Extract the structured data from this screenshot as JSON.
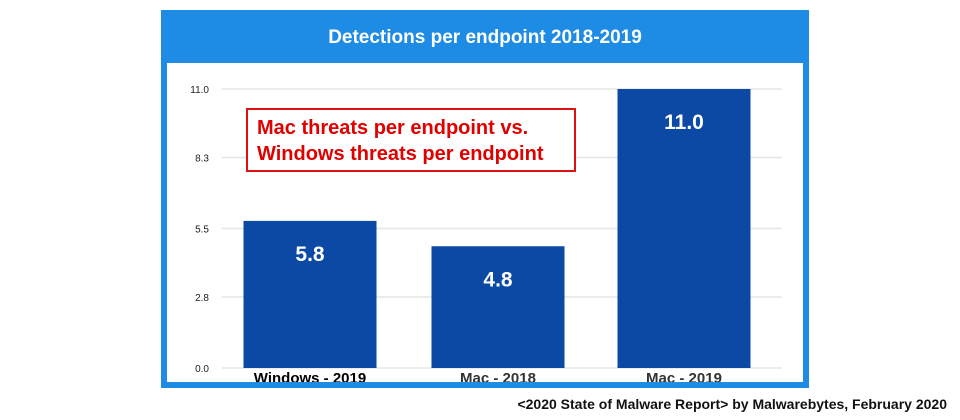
{
  "title": "Detections per endpoint 2018-2019",
  "annotation": "Mac threats per endpoint vs.\nWindows threats per endpoint",
  "source": "<2020 State of Malware Report> by Malwarebytes, February 2020",
  "colors": {
    "frame": "#1e8ce5",
    "bar": "#0b49a5",
    "annotation": "#e00000",
    "gridline": "#e6e6e6"
  },
  "chart_data": {
    "type": "bar",
    "title": "Detections per endpoint 2018-2019",
    "categories": [
      "Windows - 2019",
      "Mac - 2018",
      "Mac - 2019"
    ],
    "values": [
      5.8,
      4.8,
      11.0
    ],
    "value_labels": [
      "5.8",
      "4.8",
      "11.0"
    ],
    "yticks": [
      0.0,
      2.8,
      5.5,
      8.3,
      11.0
    ],
    "ytick_labels": [
      "0.0",
      "2.8",
      "5.5",
      "8.3",
      "11.0"
    ],
    "ylim": [
      0,
      11.0
    ],
    "xlabel": "",
    "ylabel": "",
    "grid": true,
    "legend": "none"
  }
}
